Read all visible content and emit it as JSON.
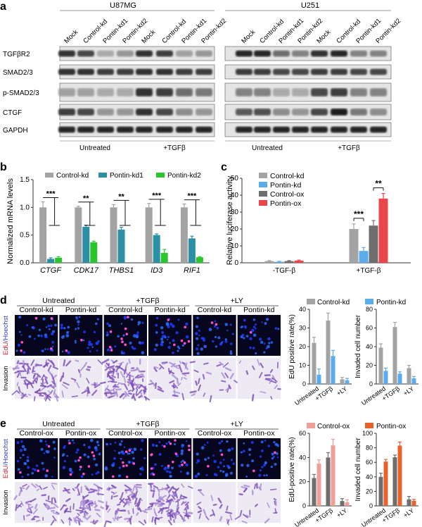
{
  "panel_letters": {
    "a": "a",
    "b": "b",
    "c": "c",
    "d": "d",
    "e": "e"
  },
  "panel_a": {
    "cell_lines": [
      "U87MG",
      "U251"
    ],
    "lane_labels": [
      "Mock",
      "Control-kd",
      "Pontin-kd1",
      "Pontin-kd2",
      "Mock",
      "Control-kd",
      "Pontin-kd1",
      "Pontin-kd2"
    ],
    "row_labels": [
      "TGFβR2",
      "SMAD2/3",
      "p-SMAD2/3",
      "CTGF",
      "GAPDH"
    ],
    "treatments": [
      "Untreated",
      "+TGFβ"
    ]
  },
  "colors": {
    "gray": "#a3a3a3",
    "teal": "#2c8fa3",
    "green": "#2dc52d",
    "lightblue": "#5aacea",
    "darkgray": "#6e6e6e",
    "red": "#e8464a",
    "pink": "#ef9f9a",
    "orange": "#e8632c"
  },
  "chart_data": [
    {
      "id": "b",
      "type": "bar",
      "ylabel": "Normalized mRNA levels",
      "categories": [
        "CTGF",
        "CDK17",
        "THBS1",
        "ID3",
        "RIF1"
      ],
      "yticks": [
        "0.0",
        "0.5",
        "1.0",
        "1.5"
      ],
      "ylim": [
        0,
        1.5
      ],
      "series": [
        {
          "name": "Control-kd",
          "color": "#a3a3a3",
          "values": [
            1.0,
            1.0,
            1.0,
            1.0,
            1.0
          ],
          "errors": [
            0.1,
            0.02,
            0.05,
            0.07,
            0.06
          ]
        },
        {
          "name": "Pontin-kd1",
          "color": "#2c8fa3",
          "values": [
            0.07,
            0.65,
            0.6,
            0.5,
            0.44
          ],
          "errors": [
            0.02,
            0.03,
            0.04,
            0.02,
            0.04
          ]
        },
        {
          "name": "Pontin-kd2",
          "color": "#2dc52d",
          "values": [
            0.09,
            0.37,
            0.0,
            0.18,
            0.1
          ],
          "errors": [
            0.02,
            0.02,
            0.0,
            0.06,
            0.01
          ]
        }
      ],
      "significance": [
        "***",
        "**",
        "**",
        "***",
        "***"
      ]
    },
    {
      "id": "c",
      "type": "bar",
      "ylabel": "Relative luciferase activity",
      "categories": [
        "-TGF-β",
        "+TGF-β"
      ],
      "yticks": [
        "0",
        "10",
        "20",
        "30",
        "40",
        "50"
      ],
      "ylim": [
        0,
        50
      ],
      "series": [
        {
          "name": "Control-kd",
          "color": "#a3a3a3",
          "values": [
            1.0,
            20
          ],
          "errors": [
            0.3,
            3
          ]
        },
        {
          "name": "Pontin-kd",
          "color": "#5aacea",
          "values": [
            0.6,
            7
          ],
          "errors": [
            0.3,
            2
          ]
        },
        {
          "name": "Control-ox",
          "color": "#6e6e6e",
          "values": [
            1.0,
            22
          ],
          "errors": [
            0.3,
            3
          ]
        },
        {
          "name": "Pontin-ox",
          "color": "#e8464a",
          "values": [
            1.3,
            38
          ],
          "errors": [
            0.3,
            3
          ]
        }
      ],
      "significance": [
        "***",
        "**"
      ]
    },
    {
      "id": "d1",
      "type": "bar",
      "ylabel": "EdU positive rate(%)",
      "categories": [
        "Untreated",
        "+TGFβ",
        "+LY"
      ],
      "yticks": [
        "0",
        "10",
        "20",
        "30",
        "40"
      ],
      "ylim": [
        0,
        40
      ],
      "series": [
        {
          "name": "Control-kd",
          "color": "#a3a3a3",
          "values": [
            22,
            34,
            2.5
          ],
          "errors": [
            3,
            4,
            1
          ]
        },
        {
          "name": "Pontin-kd",
          "color": "#5aacea",
          "values": [
            5,
            15,
            2
          ],
          "errors": [
            3,
            3,
            1
          ]
        }
      ]
    },
    {
      "id": "d2",
      "type": "bar",
      "ylabel": "Invaded cell number",
      "categories": [
        "Untreated",
        "+TGFβ",
        "+LY"
      ],
      "yticks": [
        "0",
        "20",
        "40",
        "60",
        "80"
      ],
      "ylim": [
        0,
        80
      ],
      "series": [
        {
          "name": "Control-kd",
          "color": "#a3a3a3",
          "values": [
            39,
            61,
            17
          ],
          "errors": [
            4,
            5,
            3
          ]
        },
        {
          "name": "Pontin-kd",
          "color": "#5aacea",
          "values": [
            14,
            11,
            6
          ],
          "errors": [
            3,
            2,
            2
          ]
        }
      ]
    },
    {
      "id": "e1",
      "type": "bar",
      "ylabel": "EdU-positive rate(%)",
      "categories": [
        "Untreated",
        "+TGFβ",
        "+LY"
      ],
      "yticks": [
        "0",
        "20",
        "40",
        "60"
      ],
      "ylim": [
        0,
        60
      ],
      "series": [
        {
          "name": "Control-ox",
          "color": "#6e6e6e",
          "values": [
            23,
            40,
            4
          ],
          "errors": [
            3,
            4,
            2
          ]
        },
        {
          "name": "Pontin-ox",
          "color": "#ef9f9a",
          "values": [
            35,
            50,
            3
          ],
          "errors": [
            3,
            5,
            2
          ]
        }
      ]
    },
    {
      "id": "e2",
      "type": "bar",
      "ylabel": "Invaded cell number",
      "categories": [
        "Untreated",
        "+TGFβ",
        "+LY"
      ],
      "yticks": [
        "0",
        "20",
        "40",
        "60",
        "80",
        "100"
      ],
      "ylim": [
        0,
        100
      ],
      "series": [
        {
          "name": "Control-ox",
          "color": "#6e6e6e",
          "values": [
            40,
            67,
            9
          ],
          "errors": [
            5,
            3,
            4
          ]
        },
        {
          "name": "Pontin-ox",
          "color": "#e8632c",
          "values": [
            61,
            83,
            7
          ],
          "errors": [
            3,
            5,
            2
          ]
        }
      ]
    }
  ],
  "panel_d": {
    "treatments": [
      "Untreated",
      "+TGFβ",
      "+LY"
    ],
    "groups": [
      "Control-kd",
      "Pontin-kd",
      "Control-kd",
      "Pontin-kd",
      "Control-kd",
      "Pontin-kd"
    ],
    "row_labels": {
      "edu": "EdU",
      "hoechst": "/Hoechst",
      "invasion": "Invasion"
    }
  },
  "panel_e": {
    "treatments": [
      "Untreated",
      "+TGFβ",
      "+LY"
    ],
    "groups": [
      "Control-ox",
      "Pontin-ox",
      "Control-ox",
      "Pontin-ox",
      "Control-ox",
      "Pontin-ox"
    ],
    "row_labels": {
      "edu": "EdU",
      "hoechst": "/Hoechst",
      "invasion": "Invasion"
    }
  }
}
